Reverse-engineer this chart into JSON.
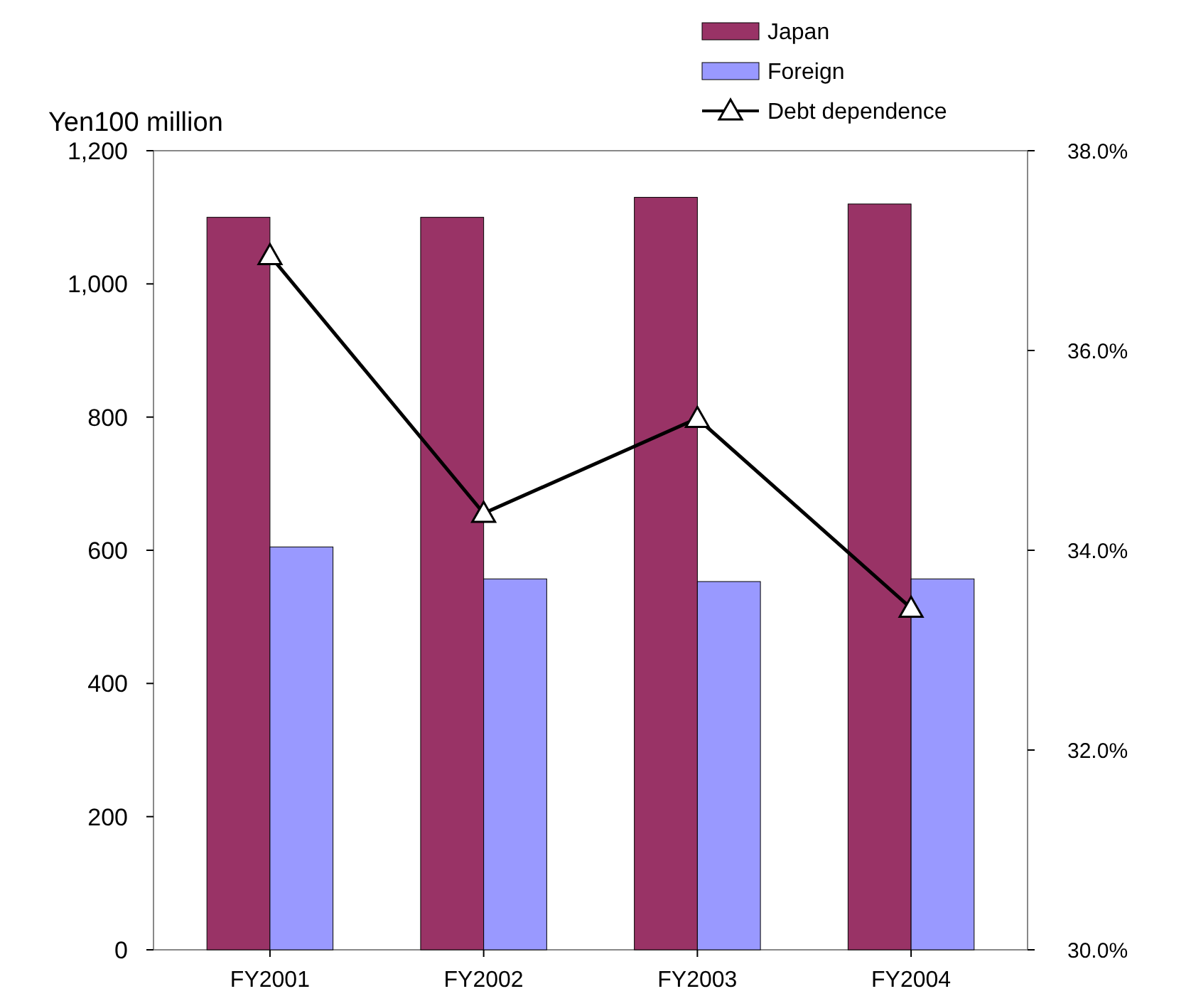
{
  "chart_data": {
    "type": "bar",
    "ylabel": "Yen100 million",
    "categories": [
      "FY2001",
      "FY2002",
      "FY2003",
      "FY2004"
    ],
    "series": [
      {
        "name": "Japan",
        "color": "#993366",
        "values": [
          1100,
          1100,
          1130,
          1120
        ]
      },
      {
        "name": "Foreign",
        "color": "#9999ff",
        "values": [
          605,
          557,
          553,
          557
        ]
      },
      {
        "name": "Debt dependence",
        "type": "line",
        "axis": "y2",
        "color": "#000000",
        "marker": "triangle",
        "values": [
          36.95,
          34.37,
          35.32,
          33.42
        ]
      }
    ],
    "ylim": [
      0,
      1200
    ],
    "yticks": [
      0,
      200,
      400,
      600,
      800,
      {
        "value": 1000,
        "label": "1,000"
      },
      {
        "value": 1200,
        "label": "1,200"
      }
    ],
    "y2lim": [
      30,
      38
    ],
    "y2ticks": [
      {
        "value": 30,
        "label": "30.0%"
      },
      {
        "value": 32,
        "label": "32.0%"
      },
      {
        "value": 34,
        "label": "34.0%"
      },
      {
        "value": 36,
        "label": "36.0%"
      },
      {
        "value": 38,
        "label": "38.0%"
      }
    ],
    "legend": "top right",
    "grid": false
  }
}
